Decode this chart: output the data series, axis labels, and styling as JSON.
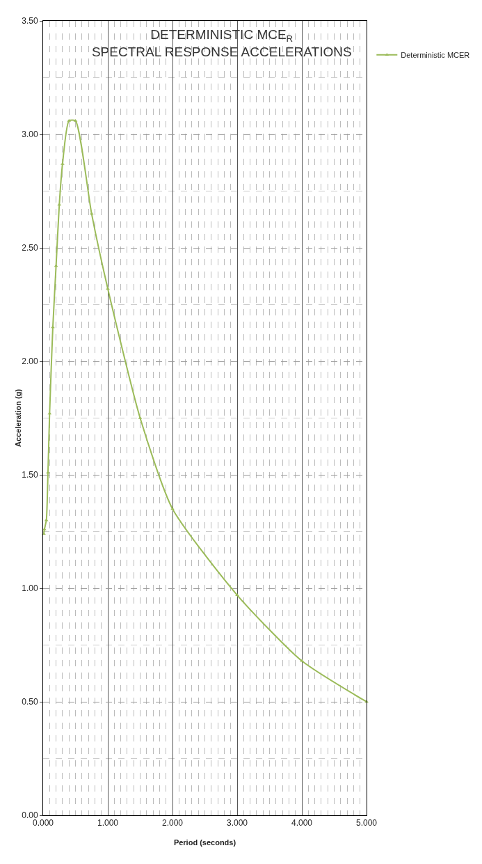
{
  "chart_data": {
    "type": "line",
    "title": "DETERMINISTIC MCE$_{R}$",
    "subtitle": "SPECTRAL RESPONSE ACCELERATIONS",
    "xlabel": "Period (seconds)",
    "ylabel": "Acceleration (g)",
    "series": [
      {
        "name": "Deterministic MCER",
        "color": "#9bbb59",
        "x": [
          0.01,
          0.02,
          0.05,
          0.075,
          0.1,
          0.15,
          0.2,
          0.25,
          0.3,
          0.4,
          0.5,
          0.75,
          1.0,
          1.5,
          2.0,
          3.0,
          4.0,
          5.0
        ],
        "values": [
          1.24,
          1.26,
          1.3,
          1.51,
          1.77,
          2.15,
          2.42,
          2.69,
          2.87,
          3.06,
          3.06,
          2.65,
          2.32,
          1.75,
          1.35,
          0.97,
          0.68,
          0.5
        ]
      }
    ],
    "xlim": [
      0,
      5
    ],
    "xticks": [
      {
        "value": 0,
        "label": "0.000"
      },
      {
        "value": 1,
        "label": "1.000"
      },
      {
        "value": 2,
        "label": "2.000"
      },
      {
        "value": 3,
        "label": "3.000"
      },
      {
        "value": 4,
        "label": "4.000"
      },
      {
        "value": 5,
        "label": "5.000"
      }
    ],
    "ylim": [
      0,
      3.5
    ],
    "yticks": [
      {
        "value": 0,
        "label": "0.00"
      },
      {
        "value": 0.5,
        "label": "0.50"
      },
      {
        "value": 1,
        "label": "1.00"
      },
      {
        "value": 1.5,
        "label": "1.50"
      },
      {
        "value": 2,
        "label": "2.00"
      },
      {
        "value": 2.5,
        "label": "2.50"
      },
      {
        "value": 3,
        "label": "3.00"
      },
      {
        "value": 3.5,
        "label": "3.50"
      }
    ],
    "grid": true,
    "legend": "top right",
    "marker": "triangle",
    "line_style": "solid"
  }
}
